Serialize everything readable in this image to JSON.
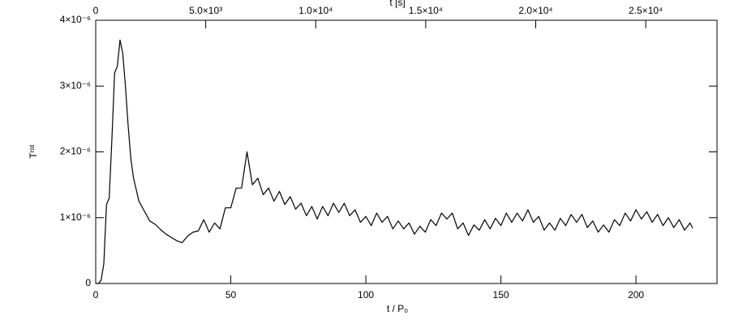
{
  "chart_data": {
    "type": "line",
    "x_label": "t / P₀",
    "y_label": "Tʳᵒᵗ",
    "x2_label": "t [s]",
    "color": "#000000",
    "xlim": [
      0,
      230
    ],
    "xticks": [
      0,
      50,
      100,
      150,
      200
    ],
    "x2lim": [
      0,
      28240
    ],
    "x2ticks": [
      0,
      {
        "value": 5000,
        "label": "5.0×10³"
      },
      {
        "value": 10000,
        "label": "1.0×10⁴"
      },
      {
        "value": 15000,
        "label": "1.5×10⁴"
      },
      {
        "value": 20000,
        "label": "2.0×10⁴"
      },
      {
        "value": 25000,
        "label": "2.5×10⁴"
      }
    ],
    "ylim": [
      0,
      4e-06
    ],
    "yticks": [
      0,
      {
        "value": 1e-06,
        "label": "1×10⁻⁶"
      },
      {
        "value": 2e-06,
        "label": "2×10⁻⁶"
      },
      {
        "value": 3e-06,
        "label": "3×10⁻⁶"
      },
      {
        "value": 4e-06,
        "label": "4×10⁻⁶"
      }
    ],
    "x": [
      0,
      1,
      2,
      3,
      4,
      5,
      6,
      7,
      8,
      9,
      10,
      11,
      12,
      13,
      14,
      16,
      18,
      20,
      22,
      24,
      26,
      28,
      30,
      32,
      34,
      36,
      38,
      40,
      42,
      44,
      46,
      48,
      50,
      52,
      54,
      56,
      58,
      60,
      62,
      64,
      66,
      68,
      70,
      72,
      74,
      76,
      78,
      80,
      82,
      84,
      86,
      88,
      90,
      92,
      94,
      96,
      98,
      100,
      102,
      104,
      106,
      108,
      110,
      112,
      114,
      116,
      118,
      120,
      122,
      124,
      126,
      128,
      130,
      132,
      134,
      136,
      138,
      140,
      142,
      144,
      146,
      148,
      150,
      152,
      154,
      156,
      158,
      160,
      162,
      164,
      166,
      168,
      170,
      172,
      174,
      176,
      178,
      180,
      182,
      184,
      186,
      188,
      190,
      192,
      194,
      196,
      198,
      200,
      202,
      204,
      206,
      208,
      210,
      212,
      214,
      216,
      218,
      220,
      221
    ],
    "values": [
      0,
      0,
      5e-08,
      3e-07,
      1.2e-06,
      1.3e-06,
      2.2e-06,
      3.2e-06,
      3.3e-06,
      3.7e-06,
      3.5e-06,
      3e-06,
      2.4e-06,
      1.9e-06,
      1.6e-06,
      1.25e-06,
      1.1e-06,
      9.5e-07,
      9e-07,
      8.2e-07,
      7.5e-07,
      7e-07,
      6.5e-07,
      6.2e-07,
      7.2e-07,
      7.8e-07,
      8e-07,
      9.7e-07,
      7.8e-07,
      9.2e-07,
      8.3e-07,
      1.15e-06,
      1.15e-06,
      1.45e-06,
      1.45e-06,
      2e-06,
      1.5e-06,
      1.6e-06,
      1.35e-06,
      1.45e-06,
      1.25e-06,
      1.4e-06,
      1.2e-06,
      1.32e-06,
      1.13e-06,
      1.22e-06,
      1.03e-06,
      1.17e-06,
      9.8e-07,
      1.17e-06,
      1.03e-06,
      1.22e-06,
      1.08e-06,
      1.22e-06,
      1.03e-06,
      1.12e-06,
      9.3e-07,
      1.02e-06,
      8.8e-07,
      1.07e-06,
      9.3e-07,
      1.02e-06,
      8.3e-07,
      9.5e-07,
      8.3e-07,
      9.2e-07,
      7.5e-07,
      8.7e-07,
      7.8e-07,
      9.7e-07,
      8.8e-07,
      1.07e-06,
      9.8e-07,
      1.07e-06,
      8.3e-07,
      9.2e-07,
      7.3e-07,
      8.9e-07,
      8.1e-07,
      9.7e-07,
      8.3e-07,
      9.9e-07,
      8.8e-07,
      1.07e-06,
      9.3e-07,
      1.07e-06,
      9.5e-07,
      1.12e-06,
      9.3e-07,
      1.02e-06,
      8.1e-07,
      9.2e-07,
      8.1e-07,
      9.9e-07,
      8.8e-07,
      1.05e-06,
      9.3e-07,
      1.05e-06,
      8.5e-07,
      9.5e-07,
      7.8e-07,
      8.9e-07,
      7.8e-07,
      9.7e-07,
      8.8e-07,
      1.07e-06,
      9.5e-07,
      1.12e-06,
      9.8e-07,
      1.09e-06,
      9.3e-07,
      1.05e-06,
      8.8e-07,
      1e-06,
      8.5e-07,
      9.7e-07,
      8.1e-07,
      9.2e-07,
      8.4e-07
    ]
  }
}
